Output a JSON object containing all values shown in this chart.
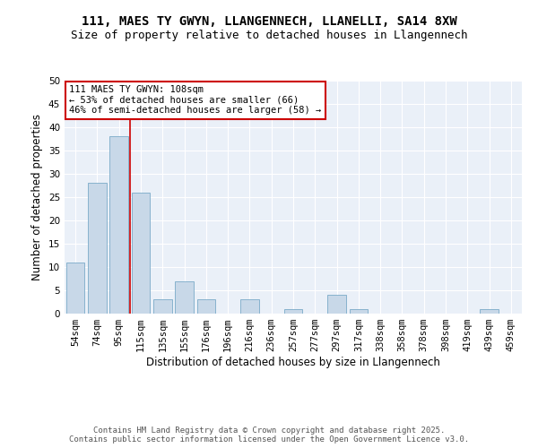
{
  "title1": "111, MAES TY GWYN, LLANGENNECH, LLANELLI, SA14 8XW",
  "title2": "Size of property relative to detached houses in Llangennech",
  "xlabel": "Distribution of detached houses by size in Llangennech",
  "ylabel": "Number of detached properties",
  "categories": [
    "54sqm",
    "74sqm",
    "95sqm",
    "115sqm",
    "135sqm",
    "155sqm",
    "176sqm",
    "196sqm",
    "216sqm",
    "236sqm",
    "257sqm",
    "277sqm",
    "297sqm",
    "317sqm",
    "338sqm",
    "358sqm",
    "378sqm",
    "398sqm",
    "419sqm",
    "439sqm",
    "459sqm"
  ],
  "values": [
    11,
    28,
    38,
    26,
    3,
    7,
    3,
    0,
    3,
    0,
    1,
    0,
    4,
    1,
    0,
    0,
    0,
    0,
    0,
    1,
    0
  ],
  "bar_color": "#c8d8e8",
  "bar_edgecolor": "#7aaac8",
  "vline_color": "#cc0000",
  "annotation_text": "111 MAES TY GWYN: 108sqm\n← 53% of detached houses are smaller (66)\n46% of semi-detached houses are larger (58) →",
  "annotation_box_color": "#cc0000",
  "ylim": [
    0,
    50
  ],
  "yticks": [
    0,
    5,
    10,
    15,
    20,
    25,
    30,
    35,
    40,
    45,
    50
  ],
  "plot_background": "#eaf0f8",
  "footer_text": "Contains HM Land Registry data © Crown copyright and database right 2025.\nContains public sector information licensed under the Open Government Licence v3.0.",
  "title_fontsize": 10,
  "subtitle_fontsize": 9,
  "axis_label_fontsize": 8.5,
  "tick_fontsize": 7.5,
  "annotation_fontsize": 7.5,
  "footer_fontsize": 6.5
}
